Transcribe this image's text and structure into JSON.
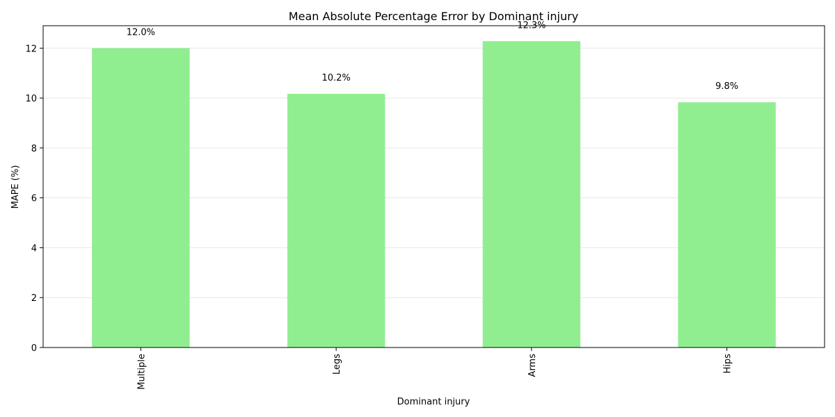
{
  "chart_data": {
    "type": "bar",
    "title": "Mean Absolute Percentage Error by Dominant injury",
    "xlabel": "Dominant injury",
    "ylabel": "MAPE (%)",
    "categories": [
      "Multiple",
      "Legs",
      "Arms",
      "Hips"
    ],
    "values": [
      12.0,
      10.17,
      12.28,
      9.83
    ],
    "data_labels": [
      "12.0%",
      "10.2%",
      "12.3%",
      "9.8%"
    ],
    "yticks": [
      0,
      2,
      4,
      6,
      8,
      10,
      12
    ],
    "ylim": [
      0,
      12.9
    ],
    "grid": "y",
    "legend": "none",
    "x_tick_rotation": 90,
    "bar_color": "#90ee90",
    "grid_color": "#e6e6e6"
  }
}
